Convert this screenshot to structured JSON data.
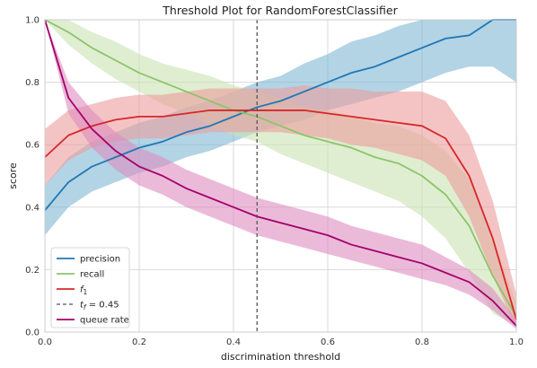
{
  "chart_data": {
    "type": "line",
    "title": "Threshold Plot for RandomForestClassifier",
    "xlabel": "discrimination threshold",
    "ylabel": "score",
    "xlim": [
      0,
      1
    ],
    "ylim": [
      0,
      1
    ],
    "xticks": [
      0.0,
      0.2,
      0.4,
      0.6,
      0.8,
      1.0
    ],
    "yticks": [
      0.0,
      0.2,
      0.4,
      0.6,
      0.8,
      1.0
    ],
    "xtick_labels": [
      "0.0",
      "0.2",
      "0.4",
      "0.6",
      "0.8",
      "1.0"
    ],
    "ytick_labels": [
      "0.0",
      "0.2",
      "0.4",
      "0.6",
      "0.8",
      "1.0"
    ],
    "grid": true,
    "legend_position": "lower-left",
    "threshold": {
      "value": 0.45,
      "legend_prefix": "t",
      "legend_sub": "f",
      "legend_suffix": " = 0.45",
      "color": "#555555"
    },
    "x": [
      0.0,
      0.05,
      0.1,
      0.15,
      0.2,
      0.25,
      0.3,
      0.35,
      0.4,
      0.45,
      0.5,
      0.55,
      0.6,
      0.65,
      0.7,
      0.75,
      0.8,
      0.85,
      0.9,
      0.95,
      1.0
    ],
    "series": [
      {
        "name": "precision",
        "color": "#1f77b4",
        "band_color": "#7fb8d4",
        "values": [
          0.39,
          0.48,
          0.53,
          0.56,
          0.59,
          0.61,
          0.64,
          0.66,
          0.69,
          0.72,
          0.74,
          0.77,
          0.8,
          0.83,
          0.85,
          0.88,
          0.91,
          0.94,
          0.95,
          1.0,
          1.0
        ],
        "lower": [
          0.31,
          0.4,
          0.45,
          0.48,
          0.51,
          0.53,
          0.56,
          0.58,
          0.61,
          0.64,
          0.66,
          0.68,
          0.71,
          0.73,
          0.75,
          0.77,
          0.8,
          0.83,
          0.85,
          0.85,
          0.8
        ],
        "upper": [
          0.47,
          0.56,
          0.61,
          0.64,
          0.67,
          0.69,
          0.72,
          0.74,
          0.77,
          0.8,
          0.82,
          0.86,
          0.89,
          0.93,
          0.95,
          0.98,
          1.0,
          1.0,
          1.0,
          1.0,
          1.0
        ]
      },
      {
        "name": "recall",
        "color": "#8dc46a",
        "band_color": "#c9e2b3",
        "values": [
          1.0,
          0.96,
          0.91,
          0.87,
          0.83,
          0.8,
          0.77,
          0.74,
          0.71,
          0.69,
          0.66,
          0.63,
          0.61,
          0.59,
          0.56,
          0.54,
          0.5,
          0.44,
          0.34,
          0.18,
          0.05
        ],
        "lower": [
          1.0,
          0.92,
          0.86,
          0.81,
          0.77,
          0.73,
          0.7,
          0.66,
          0.63,
          0.61,
          0.57,
          0.54,
          0.51,
          0.48,
          0.45,
          0.42,
          0.37,
          0.3,
          0.19,
          0.06,
          0.02
        ],
        "upper": [
          1.0,
          1.0,
          0.96,
          0.93,
          0.89,
          0.86,
          0.84,
          0.82,
          0.79,
          0.77,
          0.75,
          0.72,
          0.71,
          0.69,
          0.67,
          0.66,
          0.63,
          0.58,
          0.49,
          0.3,
          0.09
        ]
      },
      {
        "name": "f1",
        "label_main": "f",
        "label_sub": "1",
        "color": "#d62728",
        "band_color": "#ec9c9c",
        "values": [
          0.56,
          0.63,
          0.66,
          0.68,
          0.69,
          0.69,
          0.7,
          0.71,
          0.71,
          0.71,
          0.71,
          0.71,
          0.7,
          0.69,
          0.68,
          0.67,
          0.66,
          0.62,
          0.5,
          0.3,
          0.04
        ],
        "lower": [
          0.47,
          0.55,
          0.59,
          0.61,
          0.62,
          0.62,
          0.63,
          0.64,
          0.64,
          0.64,
          0.64,
          0.63,
          0.62,
          0.6,
          0.59,
          0.57,
          0.55,
          0.5,
          0.37,
          0.18,
          0.01
        ],
        "upper": [
          0.65,
          0.71,
          0.73,
          0.75,
          0.76,
          0.76,
          0.77,
          0.78,
          0.78,
          0.78,
          0.78,
          0.79,
          0.78,
          0.78,
          0.77,
          0.77,
          0.77,
          0.74,
          0.63,
          0.42,
          0.12
        ]
      },
      {
        "name": "queue rate",
        "color": "#a4006b",
        "band_color": "#dd8cbf",
        "values": [
          1.0,
          0.75,
          0.65,
          0.58,
          0.53,
          0.5,
          0.46,
          0.43,
          0.4,
          0.37,
          0.35,
          0.33,
          0.31,
          0.28,
          0.26,
          0.24,
          0.22,
          0.19,
          0.16,
          0.1,
          0.02
        ],
        "lower": [
          1.0,
          0.7,
          0.59,
          0.52,
          0.47,
          0.44,
          0.4,
          0.37,
          0.34,
          0.31,
          0.29,
          0.27,
          0.25,
          0.23,
          0.21,
          0.19,
          0.17,
          0.15,
          0.12,
          0.07,
          0.01
        ],
        "upper": [
          1.0,
          0.8,
          0.71,
          0.64,
          0.59,
          0.56,
          0.52,
          0.49,
          0.46,
          0.43,
          0.41,
          0.39,
          0.37,
          0.34,
          0.32,
          0.3,
          0.28,
          0.24,
          0.2,
          0.14,
          0.04
        ]
      }
    ]
  }
}
